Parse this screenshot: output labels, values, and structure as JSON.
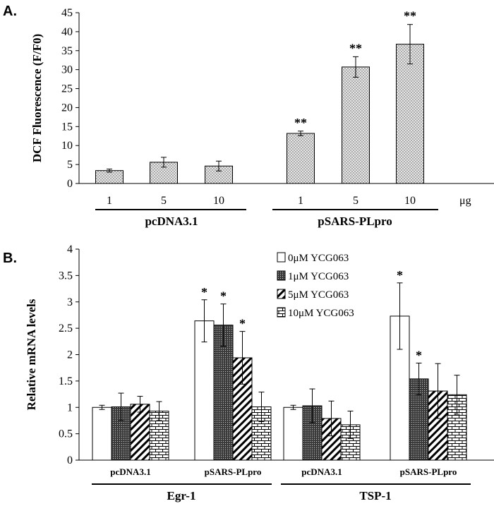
{
  "panel_a_letter": "A.",
  "panel_b_letter": "B.",
  "chart_data": [
    {
      "type": "bar",
      "panel": "A.",
      "ylabel": "DCF Fluorescence (F/F0)",
      "xlabel": "",
      "ylim": [
        0,
        45
      ],
      "yticks": [
        "0",
        "5",
        "10",
        "15",
        "20",
        "25",
        "30",
        "35",
        "40",
        "45"
      ],
      "categories": [
        "1",
        "5",
        "10",
        "1",
        "5",
        "10"
      ],
      "unit_label": "μg",
      "groups": [
        {
          "label": "pcDNA3.1",
          "categories": [
            "1",
            "5",
            "10"
          ]
        },
        {
          "label": "pSARS-PLpro",
          "categories": [
            "1",
            "5",
            "10"
          ]
        }
      ],
      "values": [
        3.4,
        5.6,
        4.6,
        13.2,
        30.7,
        36.7
      ],
      "errors": [
        0.4,
        1.3,
        1.3,
        0.6,
        2.7,
        5.2
      ],
      "significance": [
        "",
        "",
        "",
        "**",
        "**",
        "**"
      ]
    },
    {
      "type": "bar",
      "panel": "B.",
      "ylabel": "Relative mRNA levels",
      "xlabel": "",
      "ylim": [
        0,
        4
      ],
      "yticks": [
        "0",
        "0.5",
        "1",
        "1.5",
        "2",
        "2.5",
        "3",
        "3.5",
        "4"
      ],
      "categories": [
        "pcDNA3.1",
        "pSARS-PLpro",
        "pcDNA3.1",
        "pSARS-PLpro"
      ],
      "groups": [
        {
          "label": "Egr-1",
          "categories": [
            "pcDNA3.1",
            "pSARS-PLpro"
          ]
        },
        {
          "label": "TSP-1",
          "categories": [
            "pcDNA3.1",
            "pSARS-PLpro"
          ]
        }
      ],
      "legend_position": "top-right",
      "series": [
        {
          "name": "0μM YCG063",
          "values": [
            1.0,
            2.64,
            1.0,
            2.73
          ],
          "errors": [
            0.04,
            0.4,
            0.04,
            0.63
          ],
          "significance": [
            "",
            "*",
            "",
            "*"
          ]
        },
        {
          "name": "1μM YCG063",
          "values": [
            1.01,
            2.56,
            1.03,
            1.54
          ],
          "errors": [
            0.26,
            0.4,
            0.32,
            0.3
          ],
          "significance": [
            "",
            "*",
            "",
            "*"
          ]
        },
        {
          "name": "5μM YCG063",
          "values": [
            1.06,
            1.94,
            0.79,
            1.31
          ],
          "errors": [
            0.15,
            0.5,
            0.33,
            0.52
          ],
          "significance": [
            "",
            "*",
            "",
            ""
          ]
        },
        {
          "name": "10μM YCG063",
          "values": [
            0.93,
            1.01,
            0.67,
            1.24
          ],
          "errors": [
            0.18,
            0.28,
            0.26,
            0.37
          ],
          "significance": [
            "",
            "",
            "",
            ""
          ]
        }
      ]
    }
  ]
}
